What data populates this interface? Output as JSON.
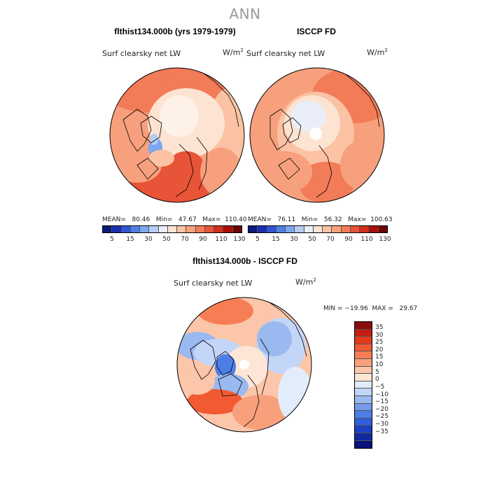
{
  "figure": {
    "title": "ANN"
  },
  "panels": {
    "model": {
      "title": "flthist134.000b (yrs 1979-1979)",
      "variable": "Surf clearsky net LW",
      "units_base": "W/m",
      "units_exp": "2",
      "stats": "MEAN=   80.46   Min=   47.67   Max=  110.40"
    },
    "obs": {
      "title": "ISCCP FD",
      "variable": "Surf clearsky net LW",
      "units_base": "W/m",
      "units_exp": "2",
      "stats": "MEAN=   76.11   Min=   56.32   Max=  100.63"
    },
    "diff": {
      "title": "flthist134.000b - ISCCP FD",
      "variable": "Surf clearsky net LW",
      "units_base": "W/m",
      "units_exp": "2",
      "stats": "MIN = −19.96  MAX =   29.67"
    }
  },
  "abs_colorbar": {
    "colors": [
      "#0b1a7a",
      "#1a2fb0",
      "#2f55d6",
      "#4f7fe6",
      "#7ea7ef",
      "#b5cdf5",
      "#e9eef8",
      "#fde3d2",
      "#fbc2a4",
      "#f7a07d",
      "#f27b58",
      "#e85437",
      "#d32f1c",
      "#a80f0a",
      "#6e0505"
    ],
    "ticks": [
      "5",
      "15",
      "30",
      "50",
      "70",
      "90",
      "110",
      "130"
    ]
  },
  "diff_colorbar": {
    "colors": [
      "#8a0c0c",
      "#c31e12",
      "#e33a1c",
      "#f25a34",
      "#f77d54",
      "#f8a07c",
      "#fbc6a9",
      "#fde6d6",
      "#e3ecfa",
      "#c4d6f7",
      "#9ab9f1",
      "#739ced",
      "#4c7ee6",
      "#2f5fdc",
      "#1e40c4",
      "#102aa0",
      "#0a137a"
    ],
    "ticks": [
      "35",
      "30",
      "25",
      "20",
      "15",
      "10",
      "5",
      "0",
      "−5",
      "−10",
      "−15",
      "−20",
      "−25",
      "−30",
      "−35"
    ]
  }
}
